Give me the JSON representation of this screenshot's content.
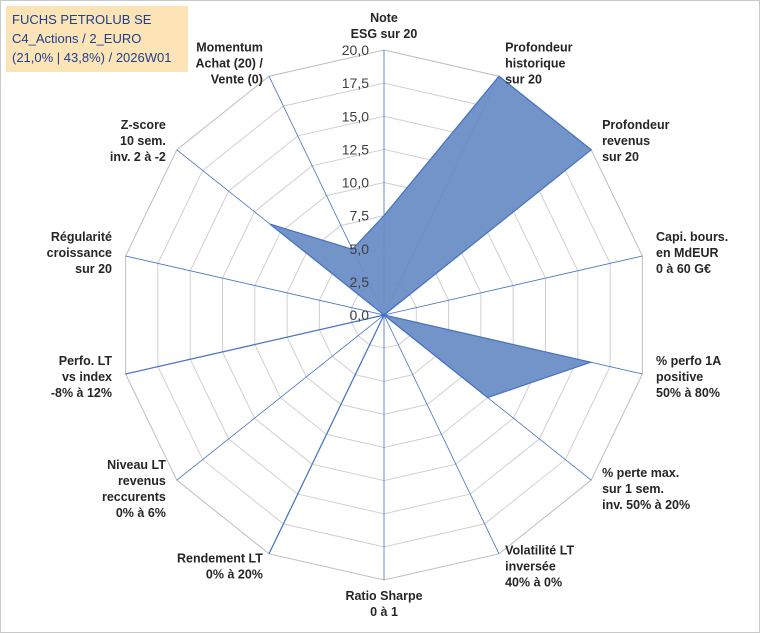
{
  "chart_data": {
    "type": "radar",
    "title_lines": [
      "FUCHS PETROLUB SE",
      "C4_Actions / 2_EURO",
      "(21,0% | 43,8%) / 2026W01"
    ],
    "axis_labels": [
      [
        "Note",
        "ESG sur 20"
      ],
      [
        "Profondeur",
        "historique",
        "sur 20"
      ],
      [
        "Profondeur",
        "revenus",
        "sur 20"
      ],
      [
        "Capi. bours.",
        "en MdEUR",
        "0 à 60 G€"
      ],
      [
        "% perfo 1A",
        "positive",
        "50% à 80%"
      ],
      [
        "% perte max.",
        "sur 1 sem.",
        "inv. 50% à 20%"
      ],
      [
        "Volatilité LT",
        "inversée",
        "40% à 0%"
      ],
      [
        "Ratio Sharpe",
        "0 à 1"
      ],
      [
        "Rendement LT",
        "0% à 20%"
      ],
      [
        "Niveau LT",
        "revenus",
        "reccurents",
        "0% à 6%"
      ],
      [
        "Perfo. LT",
        "vs index",
        "-8% à 12%"
      ],
      [
        "Régularité",
        "croissance",
        "sur 20"
      ],
      [
        "Z-score",
        "10 sem.",
        "inv. 2 à -2"
      ],
      [
        "Momentum",
        "Achat (20) /",
        "Vente (0)"
      ]
    ],
    "values": [
      7.5,
      20,
      20,
      0,
      16,
      10,
      0,
      0,
      20,
      0,
      20,
      0,
      11,
      5.5
    ],
    "rlim": [
      0,
      20
    ],
    "tick_values": [
      0,
      2.5,
      5,
      7.5,
      10,
      12.5,
      15,
      17.5,
      20
    ],
    "tick_labels": [
      "0,0",
      "2,5",
      "5,0",
      "7,5",
      "10,0",
      "12,5",
      "15,0",
      "17,5",
      "20,0"
    ],
    "fill_color": "#6a8ec6",
    "stroke_color": "#4472c4",
    "ring_color": "#d0d0d0",
    "spoke_color": "#4472c4",
    "title_color": "#1f3f8f",
    "title_bg": "#fce4b6"
  }
}
